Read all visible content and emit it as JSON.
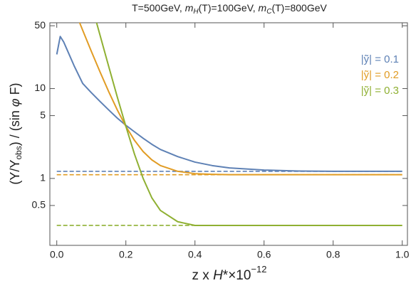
{
  "chart_data": {
    "type": "line",
    "title": [
      "T=500GeV, ",
      "m",
      "H",
      "(T)=100GeV, ",
      "m",
      "C",
      "(T)=800GeV"
    ],
    "x_label": [
      "z x ",
      "H",
      "*×10",
      "−12"
    ],
    "y_label": [
      "(Y/Y",
      "obs",
      ") / (sin ",
      "φ",
      " F)"
    ],
    "x": [
      0,
      0.01,
      0.02,
      0.03,
      0.05,
      0.075,
      0.1,
      0.125,
      0.15,
      0.175,
      0.2,
      0.225,
      0.25,
      0.275,
      0.3,
      0.35,
      0.4,
      0.45,
      0.5,
      0.6,
      0.7,
      0.8,
      0.9,
      1.0
    ],
    "series": [
      {
        "name": "|ỹ| = 0.1",
        "color": "#5e81b5",
        "asymptote": 1.2,
        "values": [
          24,
          38,
          33,
          27,
          18,
          11.4,
          9.0,
          7.2,
          5.8,
          4.7,
          3.9,
          3.3,
          2.8,
          2.4,
          2.1,
          1.75,
          1.52,
          1.39,
          1.31,
          1.24,
          1.21,
          1.2,
          1.2,
          1.2
        ]
      },
      {
        "name": "|ỹ| = 0.2",
        "color": "#e19c24",
        "asymptote": 1.1,
        "values": [
          null,
          null,
          null,
          null,
          77,
          44.6,
          26,
          15.4,
          9.3,
          5.8,
          3.8,
          2.65,
          1.99,
          1.61,
          1.39,
          1.2,
          1.13,
          1.11,
          1.1,
          1.1,
          1.1,
          1.1,
          1.1,
          1.1
        ]
      },
      {
        "name": "|ỹ| = 0.3",
        "color": "#8fb032",
        "asymptote": 0.3,
        "values": [
          null,
          null,
          null,
          null,
          null,
          null,
          88,
          39.5,
          17.8,
          8.1,
          3.8,
          1.86,
          1.0,
          0.61,
          0.44,
          0.33,
          0.3,
          0.3,
          0.3,
          0.3,
          0.3,
          0.3,
          0.3,
          0.3
        ]
      }
    ],
    "xlim": [
      -0.02,
      1.015
    ],
    "xticks": [
      {
        "value": 0,
        "label": "0.0"
      },
      0.2,
      0.4,
      0.6,
      0.8,
      {
        "value": 1,
        "label": "1.0"
      }
    ],
    "ylim": [
      0.18,
      54
    ],
    "yticks": [
      0.5,
      1,
      5,
      10,
      50
    ],
    "log_y": true,
    "legend": "upper right"
  }
}
